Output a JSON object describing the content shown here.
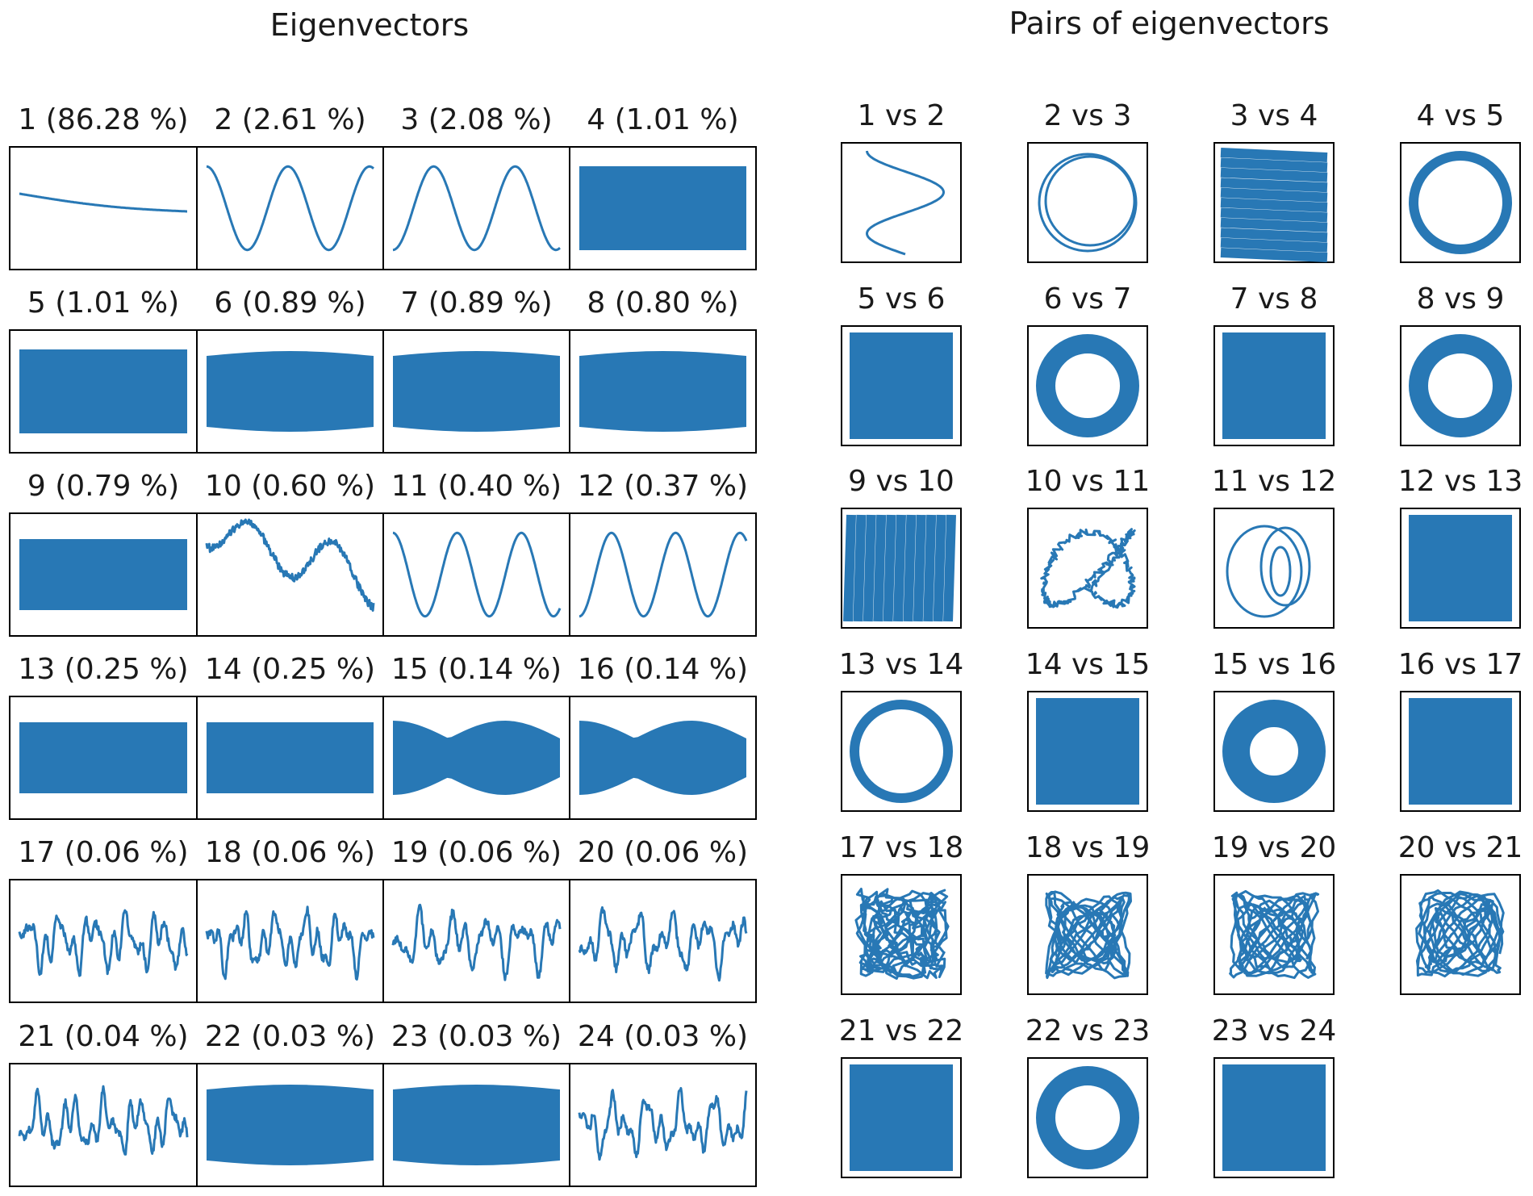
{
  "colors": {
    "series": "#2878b5",
    "frame": "#000000",
    "background": "#ffffff"
  },
  "chart_data": [
    {
      "type": "line",
      "title": "Eigenvectors",
      "grid": false,
      "panels": [
        {
          "label": "1 (86.28 %)",
          "shape": "trend",
          "variance_pct": 86.28
        },
        {
          "label": "2 (2.61 %)",
          "shape": "sine",
          "variance_pct": 2.61
        },
        {
          "label": "3 (2.08 %)",
          "shape": "cosine",
          "variance_pct": 2.08
        },
        {
          "label": "4 (1.01 %)",
          "shape": "dense-band",
          "variance_pct": 1.01
        },
        {
          "label": "5 (1.01 %)",
          "shape": "dense-band",
          "variance_pct": 1.01
        },
        {
          "label": "6 (0.89 %)",
          "shape": "dense-band",
          "variance_pct": 0.89
        },
        {
          "label": "7 (0.89 %)",
          "shape": "dense-band",
          "variance_pct": 0.89
        },
        {
          "label": "8 (0.80 %)",
          "shape": "dense-band",
          "variance_pct": 0.8
        },
        {
          "label": "9 (0.79 %)",
          "shape": "dense-band",
          "variance_pct": 0.79
        },
        {
          "label": "10 (0.60 %)",
          "shape": "noisy-decaying-wave",
          "variance_pct": 0.6
        },
        {
          "label": "11 (0.40 %)",
          "shape": "sine",
          "variance_pct": 0.4
        },
        {
          "label": "12 (0.37 %)",
          "shape": "cosine",
          "variance_pct": 0.37
        },
        {
          "label": "13 (0.25 %)",
          "shape": "dense-band",
          "variance_pct": 0.25
        },
        {
          "label": "14 (0.25 %)",
          "shape": "dense-band",
          "variance_pct": 0.25
        },
        {
          "label": "15 (0.14 %)",
          "shape": "modulated-band",
          "variance_pct": 0.14
        },
        {
          "label": "16 (0.14 %)",
          "shape": "modulated-band",
          "variance_pct": 0.14
        },
        {
          "label": "17 (0.06 %)",
          "shape": "irregular-oscillation",
          "variance_pct": 0.06
        },
        {
          "label": "18 (0.06 %)",
          "shape": "irregular-oscillation",
          "variance_pct": 0.06
        },
        {
          "label": "19 (0.06 %)",
          "shape": "irregular-oscillation",
          "variance_pct": 0.06
        },
        {
          "label": "20 (0.06 %)",
          "shape": "irregular-oscillation",
          "variance_pct": 0.06
        },
        {
          "label": "21 (0.04 %)",
          "shape": "irregular-oscillation",
          "variance_pct": 0.04
        },
        {
          "label": "22 (0.03 %)",
          "shape": "dense-band",
          "variance_pct": 0.03
        },
        {
          "label": "23 (0.03 %)",
          "shape": "dense-band",
          "variance_pct": 0.03
        },
        {
          "label": "24 (0.03 %)",
          "shape": "irregular-oscillation",
          "variance_pct": 0.03
        }
      ]
    },
    {
      "type": "scatter",
      "title": "Pairs of eigenvectors",
      "grid": false,
      "panels": [
        {
          "label": "1 vs 2",
          "shape": "zigzag"
        },
        {
          "label": "2 vs 3",
          "shape": "circle-line"
        },
        {
          "label": "3 vs 4",
          "shape": "horizontal-bands"
        },
        {
          "label": "4 vs 5",
          "shape": "ring"
        },
        {
          "label": "5 vs 6",
          "shape": "filled-square"
        },
        {
          "label": "6 vs 7",
          "shape": "ring-thick"
        },
        {
          "label": "7 vs 8",
          "shape": "filled-square"
        },
        {
          "label": "8 vs 9",
          "shape": "ring-thick"
        },
        {
          "label": "9 vs 10",
          "shape": "vertical-bands"
        },
        {
          "label": "10 vs 11",
          "shape": "wiggly-lissajous"
        },
        {
          "label": "11 vs 12",
          "shape": "interlocked-loops"
        },
        {
          "label": "12 vs 13",
          "shape": "filled-square"
        },
        {
          "label": "13 vs 14",
          "shape": "ring"
        },
        {
          "label": "14 vs 15",
          "shape": "filled-square"
        },
        {
          "label": "15 vs 16",
          "shape": "ring-very-thick"
        },
        {
          "label": "16 vs 17",
          "shape": "filled-square-notched"
        },
        {
          "label": "17 vs 18",
          "shape": "tangle"
        },
        {
          "label": "18 vs 19",
          "shape": "tangle-loops"
        },
        {
          "label": "19 vs 20",
          "shape": "tangle-loops"
        },
        {
          "label": "20 vs 21",
          "shape": "tangle-loops"
        },
        {
          "label": "21 vs 22",
          "shape": "filled-square"
        },
        {
          "label": "22 vs 23",
          "shape": "ring-thick"
        },
        {
          "label": "23 vs 24",
          "shape": "filled-square"
        }
      ]
    }
  ]
}
